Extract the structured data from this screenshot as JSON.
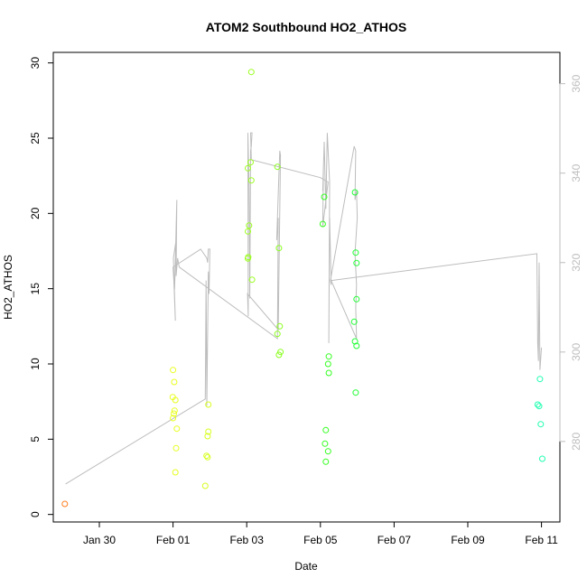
{
  "chart_data": {
    "type": "scatter",
    "title": "ATOM2 Southbound HO2_ATHOS",
    "xlabel": "Date",
    "ylabel": "HO2_ATHOS",
    "xlim": [
      "2016-01-28T18:00",
      "2016-02-11T12:00"
    ],
    "ylim": [
      -0.5,
      30.7
    ],
    "y_ticks": [
      0,
      5,
      10,
      15,
      20,
      25,
      30
    ],
    "x_ticks": [
      {
        "date": "2016-01-30",
        "label": "Jan 30"
      },
      {
        "date": "2016-02-01",
        "label": "Feb 01"
      },
      {
        "date": "2016-02-03",
        "label": "Feb 03"
      },
      {
        "date": "2016-02-05",
        "label": "Feb 05"
      },
      {
        "date": "2016-02-07",
        "label": "Feb 07"
      },
      {
        "date": "2016-02-09",
        "label": "Feb 09"
      },
      {
        "date": "2016-02-11",
        "label": "Feb 11"
      }
    ],
    "secondary_axis": {
      "side": "right",
      "color": "#bdbdbd",
      "ylim": [
        262,
        367
      ],
      "ticks": [
        280,
        300,
        320,
        340,
        360
      ]
    },
    "points": [
      {
        "x": "2016-01-29T01:30",
        "y": 0.7,
        "color": "#ff7f1f"
      },
      {
        "x": "2016-02-01T00:00",
        "y": 9.6,
        "color": "#e8ff1f"
      },
      {
        "x": "2016-01-31T23:50",
        "y": 7.8,
        "color": "#e8ff1f"
      },
      {
        "x": "2016-02-01T01:30",
        "y": 7.6,
        "color": "#e8ff1f"
      },
      {
        "x": "2016-02-01T00:45",
        "y": 8.8,
        "color": "#e8ff1f"
      },
      {
        "x": "2016-02-01T02:30",
        "y": 5.7,
        "color": "#e8ff1f"
      },
      {
        "x": "2016-02-01T01:00",
        "y": 6.9,
        "color": "#e8ff1f"
      },
      {
        "x": "2016-02-01T00:30",
        "y": 6.7,
        "color": "#e8ff1f"
      },
      {
        "x": "2016-02-01T00:00",
        "y": 6.4,
        "color": "#e8ff1f"
      },
      {
        "x": "2016-02-01T02:00",
        "y": 4.4,
        "color": "#e8ff1f"
      },
      {
        "x": "2016-02-01T01:30",
        "y": 2.8,
        "color": "#e8ff1f"
      },
      {
        "x": "2016-02-01T21:00",
        "y": 1.9,
        "color": "#d6ff1f"
      },
      {
        "x": "2016-02-01T21:50",
        "y": 3.9,
        "color": "#d6ff1f"
      },
      {
        "x": "2016-02-01T22:30",
        "y": 3.8,
        "color": "#d6ff1f"
      },
      {
        "x": "2016-02-01T22:30",
        "y": 5.2,
        "color": "#d6ff1f"
      },
      {
        "x": "2016-02-01T23:00",
        "y": 5.5,
        "color": "#d6ff1f"
      },
      {
        "x": "2016-02-01T23:00",
        "y": 7.3,
        "color": "#d6ff1f"
      },
      {
        "x": "2016-02-03T03:00",
        "y": 29.4,
        "color": "#9bff1f"
      },
      {
        "x": "2016-02-03T02:30",
        "y": 23.4,
        "color": "#9bff1f"
      },
      {
        "x": "2016-02-03T00:45",
        "y": 23.0,
        "color": "#9bff1f"
      },
      {
        "x": "2016-02-03T03:00",
        "y": 22.2,
        "color": "#9bff1f"
      },
      {
        "x": "2016-02-03T01:30",
        "y": 19.2,
        "color": "#9bff1f"
      },
      {
        "x": "2016-02-03T00:45",
        "y": 18.8,
        "color": "#9bff1f"
      },
      {
        "x": "2016-02-03T01:00",
        "y": 17.1,
        "color": "#9bff1f"
      },
      {
        "x": "2016-02-03T00:45",
        "y": 17.0,
        "color": "#9bff1f"
      },
      {
        "x": "2016-02-03T03:30",
        "y": 15.6,
        "color": "#9bff1f"
      },
      {
        "x": "2016-02-03T20:00",
        "y": 23.1,
        "color": "#8aff1f"
      },
      {
        "x": "2016-02-03T21:00",
        "y": 17.7,
        "color": "#8aff1f"
      },
      {
        "x": "2016-02-03T21:30",
        "y": 12.5,
        "color": "#8aff1f"
      },
      {
        "x": "2016-02-03T20:00",
        "y": 12.0,
        "color": "#8aff1f"
      },
      {
        "x": "2016-02-03T22:00",
        "y": 10.8,
        "color": "#8aff1f"
      },
      {
        "x": "2016-02-03T21:00",
        "y": 10.6,
        "color": "#8aff1f"
      },
      {
        "x": "2016-02-05T02:30",
        "y": 21.1,
        "color": "#33ff1f"
      },
      {
        "x": "2016-02-05T01:30",
        "y": 19.3,
        "color": "#33ff1f"
      },
      {
        "x": "2016-02-05T05:30",
        "y": 10.5,
        "color": "#33ff1f"
      },
      {
        "x": "2016-02-05T05:00",
        "y": 10.0,
        "color": "#33ff1f"
      },
      {
        "x": "2016-02-05T05:30",
        "y": 9.4,
        "color": "#33ff1f"
      },
      {
        "x": "2016-02-05T03:30",
        "y": 5.6,
        "color": "#33ff1f"
      },
      {
        "x": "2016-02-05T03:00",
        "y": 4.7,
        "color": "#33ff1f"
      },
      {
        "x": "2016-02-05T05:00",
        "y": 4.2,
        "color": "#33ff1f"
      },
      {
        "x": "2016-02-05T03:30",
        "y": 3.5,
        "color": "#33ff1f"
      },
      {
        "x": "2016-02-05T22:30",
        "y": 21.4,
        "color": "#1fff33"
      },
      {
        "x": "2016-02-05T23:00",
        "y": 17.4,
        "color": "#1fff33"
      },
      {
        "x": "2016-02-05T23:30",
        "y": 16.7,
        "color": "#1fff33"
      },
      {
        "x": "2016-02-05T23:30",
        "y": 14.3,
        "color": "#1fff33"
      },
      {
        "x": "2016-02-05T22:00",
        "y": 12.8,
        "color": "#1fff33"
      },
      {
        "x": "2016-02-05T22:30",
        "y": 11.5,
        "color": "#1fff33"
      },
      {
        "x": "2016-02-05T23:30",
        "y": 11.2,
        "color": "#1fff33"
      },
      {
        "x": "2016-02-05T23:00",
        "y": 8.1,
        "color": "#1fff33"
      },
      {
        "x": "2016-02-10T23:00",
        "y": 9.0,
        "color": "#1fffb0"
      },
      {
        "x": "2016-02-10T21:30",
        "y": 7.3,
        "color": "#1fffb0"
      },
      {
        "x": "2016-02-10T22:30",
        "y": 7.2,
        "color": "#1fffb0"
      },
      {
        "x": "2016-02-10T23:30",
        "y": 6.0,
        "color": "#1fffb0"
      },
      {
        "x": "2016-02-11T00:30",
        "y": 3.7,
        "color": "#1fffb0"
      }
    ],
    "line_series": {
      "axis": "right",
      "color": "#bdbdbd",
      "points": [
        [
          "2016-01-29T02:00",
          270.5
        ],
        [
          "2016-02-01T21:00",
          289.5
        ],
        [
          "2016-02-01T21:30",
          316
        ],
        [
          "2016-02-01T22:00",
          288
        ],
        [
          "2016-02-01T23:00",
          318
        ],
        [
          "2016-02-01T23:30",
          313
        ],
        [
          "2016-02-02T00:00",
          323
        ],
        [
          "2016-02-01T23:00",
          323
        ],
        [
          "2016-02-01T22:30",
          320
        ],
        [
          "2016-02-01T22:00",
          321
        ],
        [
          "2016-02-01T18:00",
          323
        ],
        [
          "2016-02-01T00:00",
          319
        ],
        [
          "2016-02-01T01:00",
          313
        ],
        [
          "2016-02-01T00:30",
          316
        ],
        [
          "2016-02-01T01:30",
          307
        ],
        [
          "2016-02-01T00:15",
          321
        ],
        [
          "2016-02-01T02:00",
          325
        ],
        [
          "2016-02-01T01:00",
          314
        ],
        [
          "2016-02-01T02:30",
          334
        ],
        [
          "2016-02-01T02:00",
          317
        ],
        [
          "2016-02-01T03:00",
          321
        ],
        [
          "2016-02-01T04:00",
          319
        ],
        [
          "2016-02-03T20:00",
          303
        ],
        [
          "2016-02-03T20:30",
          330
        ],
        [
          "2016-02-03T19:30",
          325
        ],
        [
          "2016-02-03T21:00",
          340
        ],
        [
          "2016-02-03T21:30",
          345
        ],
        [
          "2016-02-03T22:00",
          344
        ],
        [
          "2016-02-03T20:30",
          305
        ],
        [
          "2016-02-03T00:30",
          313
        ],
        [
          "2016-02-03T01:00",
          308
        ],
        [
          "2016-02-03T00:45",
          349
        ],
        [
          "2016-02-03T01:30",
          337
        ],
        [
          "2016-02-03T02:00",
          312
        ],
        [
          "2016-02-03T02:30",
          345
        ],
        [
          "2016-02-03T03:00",
          346
        ],
        [
          "2016-02-03T03:30",
          349
        ],
        [
          "2016-02-03T02:30",
          349
        ],
        [
          "2016-02-03T03:00",
          343
        ],
        [
          "2016-02-05T00:00",
          339
        ],
        [
          "2016-02-05T05:00",
          338
        ],
        [
          "2016-02-05T01:30",
          328
        ],
        [
          "2016-02-05T02:00",
          342
        ],
        [
          "2016-02-05T01:30",
          336
        ],
        [
          "2016-02-05T02:30",
          347
        ],
        [
          "2016-02-05T03:30",
          332
        ],
        [
          "2016-02-05T04:30",
          349
        ],
        [
          "2016-02-05T06:00",
          338
        ],
        [
          "2016-02-05T05:30",
          302
        ],
        [
          "2016-02-05T06:00",
          330
        ],
        [
          "2016-02-05T07:00",
          315
        ],
        [
          "2016-02-05T06:30",
          316
        ],
        [
          "2016-02-05T22:00",
          346
        ],
        [
          "2016-02-05T23:00",
          345
        ],
        [
          "2016-02-05T22:30",
          334
        ],
        [
          "2016-02-05T23:30",
          336
        ],
        [
          "2016-02-06T00:00",
          330
        ],
        [
          "2016-02-05T22:30",
          322
        ],
        [
          "2016-02-05T23:30",
          315
        ],
        [
          "2016-02-05T23:00",
          310
        ],
        [
          "2016-02-05T23:30",
          303
        ],
        [
          "2016-02-05T07:00",
          316
        ],
        [
          "2016-02-10T21:00",
          322
        ],
        [
          "2016-02-10T21:30",
          302
        ],
        [
          "2016-02-10T22:00",
          298
        ],
        [
          "2016-02-10T22:30",
          320
        ],
        [
          "2016-02-10T23:00",
          296
        ],
        [
          "2016-02-11T00:00",
          301
        ]
      ]
    }
  }
}
